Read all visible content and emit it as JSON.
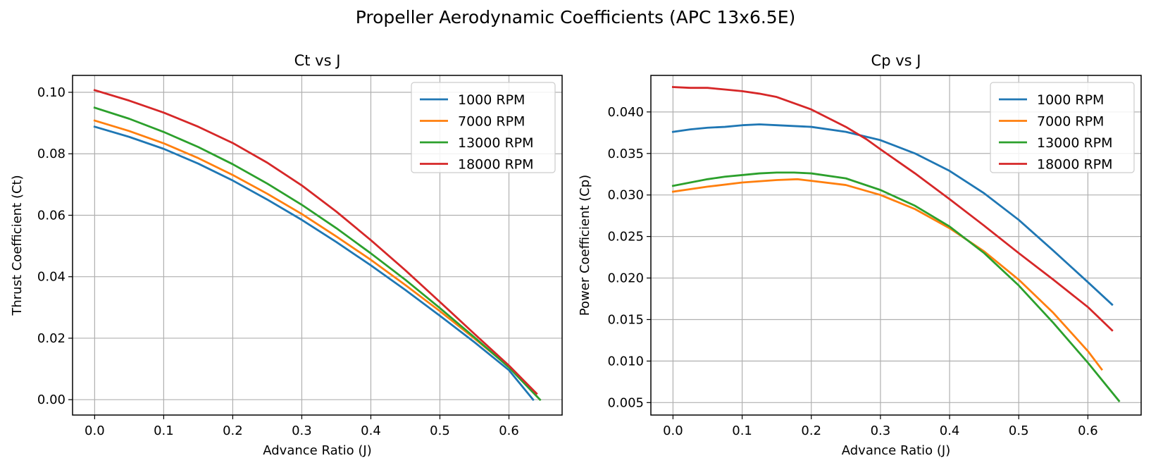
{
  "figure": {
    "suptitle": "Propeller Aerodynamic Coefficients (APC 13x6.5E)"
  },
  "colors": {
    "blue": "#1f77b4",
    "orange": "#ff7f0e",
    "green": "#2ca02c",
    "red": "#d62728",
    "grid": "#b0b0b0"
  },
  "chart_data": [
    {
      "type": "line",
      "title": "Ct vs J",
      "xlabel": "Advance Ratio (J)",
      "ylabel": "Thrust Coefficient (Ct)",
      "xlim": [
        -0.032,
        0.677
      ],
      "ylim": [
        -0.005,
        0.1055
      ],
      "xticks": [
        "0.0",
        "0.1",
        "0.2",
        "0.3",
        "0.4",
        "0.5",
        "0.6"
      ],
      "yticks": [
        "0.00",
        "0.02",
        "0.04",
        "0.06",
        "0.08",
        "0.10"
      ],
      "grid": true,
      "legend_position": "upper right",
      "series": [
        {
          "name": "1000 RPM",
          "color": "#1f77b4",
          "x": [
            0,
            0.05,
            0.1,
            0.15,
            0.2,
            0.25,
            0.3,
            0.35,
            0.4,
            0.45,
            0.5,
            0.55,
            0.6,
            0.635
          ],
          "y": [
            0.0888,
            0.0855,
            0.0816,
            0.0768,
            0.0713,
            0.0651,
            0.0585,
            0.0513,
            0.0437,
            0.0357,
            0.0273,
            0.0187,
            0.0096,
            0.0
          ]
        },
        {
          "name": "7000 RPM",
          "color": "#ff7f0e",
          "x": [
            0,
            0.05,
            0.1,
            0.15,
            0.2,
            0.25,
            0.3,
            0.35,
            0.4,
            0.45,
            0.5,
            0.55,
            0.6,
            0.64
          ],
          "y": [
            0.0908,
            0.0874,
            0.0834,
            0.0786,
            0.0731,
            0.067,
            0.0604,
            0.0531,
            0.0455,
            0.0373,
            0.0288,
            0.0199,
            0.0107,
            0.0012
          ]
        },
        {
          "name": "13000 RPM",
          "color": "#2ca02c",
          "x": [
            0,
            0.05,
            0.1,
            0.15,
            0.2,
            0.25,
            0.3,
            0.35,
            0.4,
            0.45,
            0.5,
            0.55,
            0.6,
            0.645
          ],
          "y": [
            0.095,
            0.0914,
            0.0871,
            0.0822,
            0.0766,
            0.0703,
            0.0634,
            0.0558,
            0.0476,
            0.039,
            0.0298,
            0.0203,
            0.0105,
            0.0
          ]
        },
        {
          "name": "18000 RPM",
          "color": "#d62728",
          "x": [
            0,
            0.05,
            0.1,
            0.15,
            0.2,
            0.25,
            0.3,
            0.35,
            0.4,
            0.45,
            0.5,
            0.55,
            0.6,
            0.64
          ],
          "y": [
            0.1007,
            0.0973,
            0.0934,
            0.0888,
            0.0835,
            0.0771,
            0.0697,
            0.0612,
            0.0519,
            0.0421,
            0.0318,
            0.0214,
            0.0111,
            0.002
          ]
        }
      ]
    },
    {
      "type": "line",
      "title": "Cp vs J",
      "xlabel": "Advance Ratio (J)",
      "ylabel": "Power Coefficient (Cp)",
      "xlim": [
        -0.032,
        0.677
      ],
      "ylim": [
        0.0035,
        0.0444
      ],
      "xticks": [
        "0.0",
        "0.1",
        "0.2",
        "0.3",
        "0.4",
        "0.5",
        "0.6"
      ],
      "yticks": [
        "0.005",
        "0.010",
        "0.015",
        "0.020",
        "0.025",
        "0.030",
        "0.035",
        "0.040"
      ],
      "grid": true,
      "legend_position": "upper right",
      "series": [
        {
          "name": "1000 RPM",
          "color": "#1f77b4",
          "x": [
            0,
            0.025,
            0.05,
            0.075,
            0.1,
            0.125,
            0.15,
            0.2,
            0.25,
            0.3,
            0.35,
            0.4,
            0.45,
            0.5,
            0.55,
            0.6,
            0.635
          ],
          "y": [
            0.0376,
            0.0379,
            0.0381,
            0.0382,
            0.0384,
            0.0385,
            0.0384,
            0.0382,
            0.0376,
            0.0366,
            0.035,
            0.0329,
            0.0302,
            0.027,
            0.0233,
            0.0195,
            0.0168
          ]
        },
        {
          "name": "7000 RPM",
          "color": "#ff7f0e",
          "x": [
            0,
            0.05,
            0.1,
            0.15,
            0.18,
            0.2,
            0.25,
            0.3,
            0.35,
            0.4,
            0.45,
            0.5,
            0.55,
            0.6,
            0.62
          ],
          "y": [
            0.0304,
            0.031,
            0.0315,
            0.0318,
            0.0319,
            0.0317,
            0.0312,
            0.03,
            0.0283,
            0.026,
            0.0232,
            0.0198,
            0.0158,
            0.0112,
            0.009
          ]
        },
        {
          "name": "13000 RPM",
          "color": "#2ca02c",
          "x": [
            0,
            0.025,
            0.05,
            0.075,
            0.1,
            0.125,
            0.15,
            0.175,
            0.2,
            0.25,
            0.3,
            0.35,
            0.4,
            0.45,
            0.5,
            0.55,
            0.6,
            0.645
          ],
          "y": [
            0.0311,
            0.0315,
            0.0319,
            0.0322,
            0.0324,
            0.0326,
            0.0327,
            0.0327,
            0.0326,
            0.032,
            0.0306,
            0.0287,
            0.0262,
            0.023,
            0.0191,
            0.0146,
            0.0098,
            0.0052
          ]
        },
        {
          "name": "18000 RPM",
          "color": "#d62728",
          "x": [
            0,
            0.025,
            0.05,
            0.075,
            0.1,
            0.125,
            0.15,
            0.2,
            0.25,
            0.28,
            0.3,
            0.35,
            0.4,
            0.45,
            0.5,
            0.55,
            0.6,
            0.635
          ],
          "y": [
            0.043,
            0.0429,
            0.0429,
            0.0427,
            0.0425,
            0.0422,
            0.0418,
            0.0403,
            0.0382,
            0.0367,
            0.0355,
            0.0326,
            0.0295,
            0.0263,
            0.023,
            0.0198,
            0.0165,
            0.0137
          ]
        }
      ]
    }
  ]
}
